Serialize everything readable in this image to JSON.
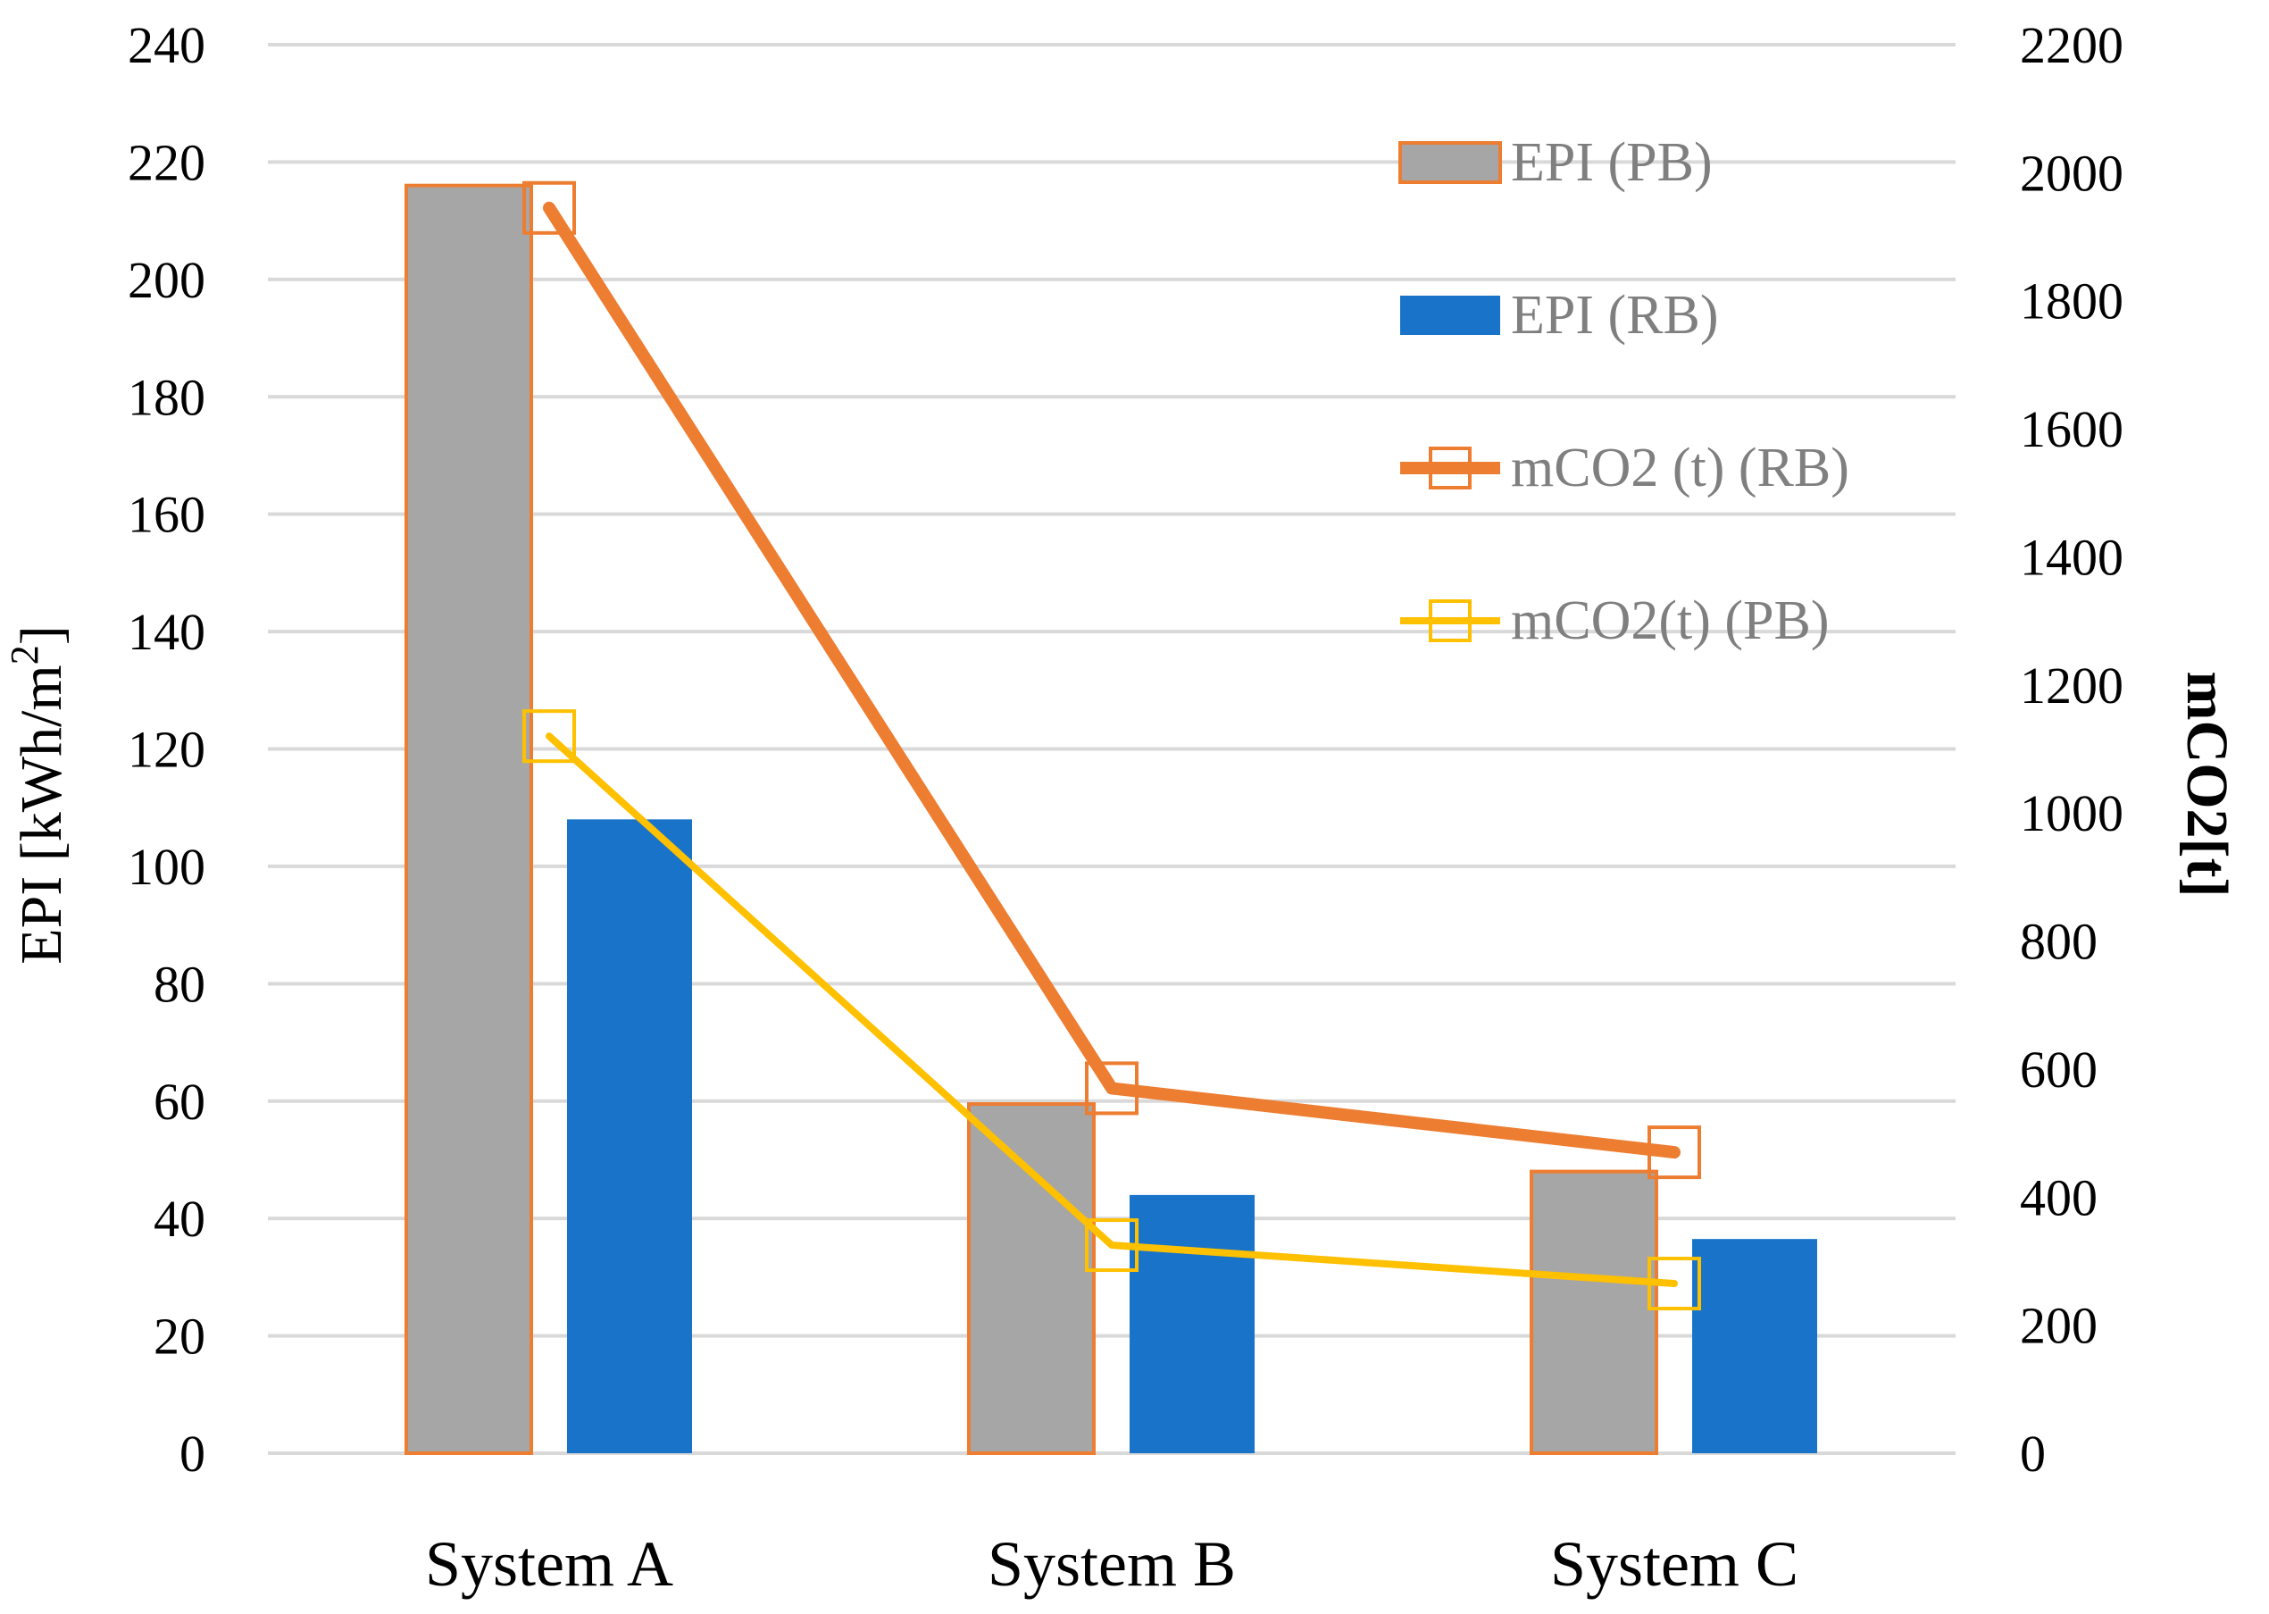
{
  "chart_data": {
    "type": "bar",
    "categories": [
      "System A",
      "System B",
      "System C"
    ],
    "bar_series": [
      {
        "name": "EPI (PB)",
        "axis": "left",
        "values": [
          216,
          59.5,
          48
        ],
        "fill": "#a6a6a6",
        "stroke": "#ed7d31"
      },
      {
        "name": "EPI (RB)",
        "axis": "left",
        "values": [
          108,
          44,
          36.5
        ],
        "fill": "#1873c9",
        "stroke": "none"
      }
    ],
    "line_series": [
      {
        "name": "mCO2 (t) (RB)",
        "axis": "right",
        "values": [
          1945,
          570,
          470
        ],
        "color": "#ed7d31",
        "marker": "square"
      },
      {
        "name": "mCO2(t) (PB)",
        "axis": "right",
        "values": [
          1120,
          325,
          265
        ],
        "color": "#ffc000",
        "marker": "square"
      }
    ],
    "y_left": {
      "label": "EPI [kWh/m²]",
      "label_main": "EPI [kWh/m",
      "label_sup": "2",
      "label_end": "]",
      "min": 0,
      "max": 240,
      "step": 20
    },
    "y_right": {
      "label": "mCO2[t]",
      "min": 0,
      "max": 2200,
      "step": 200
    },
    "grid": true,
    "legend_position": "top-right",
    "title": "",
    "xlabel": ""
  }
}
